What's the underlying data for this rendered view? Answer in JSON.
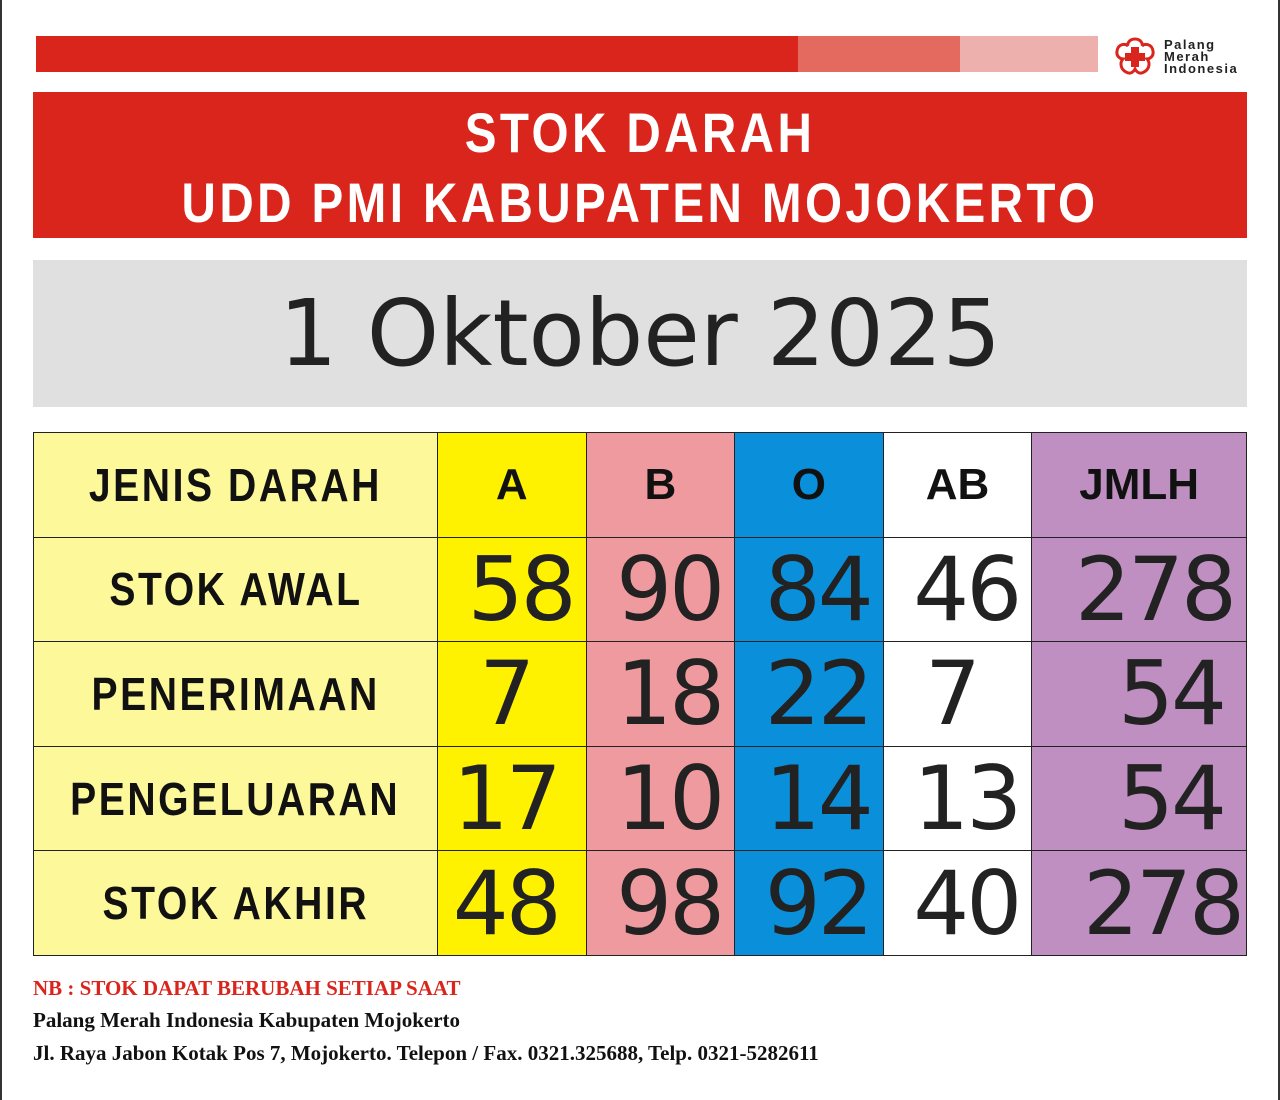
{
  "colors": {
    "red": "#da251d",
    "A": "#fff200",
    "B": "#ef9a9e",
    "O": "#0a8fdb",
    "AB": "#ffffff",
    "JMLH": "#bf8fc2",
    "label": "#fdf89a"
  },
  "logo": {
    "icon": "red-cross-flower-icon",
    "text": [
      "Palang",
      "Merah",
      "Indonesia"
    ]
  },
  "title": {
    "line1": "STOK DARAH",
    "line2": "UDD PMI KABUPATEN MOJOKERTO"
  },
  "date": "1 Oktober 2025",
  "table": {
    "headers": [
      "JENIS DARAH",
      "A",
      "B",
      "O",
      "AB",
      "JMLH"
    ],
    "rows": [
      {
        "label": "STOK AWAL",
        "values": [
          "58",
          "90",
          "84",
          "46",
          "278"
        ]
      },
      {
        "label": "PENERIMAAN",
        "values": [
          "7",
          "18",
          "22",
          "7",
          "54"
        ]
      },
      {
        "label": "PENGELUARAN",
        "values": [
          "17",
          "10",
          "14",
          "13",
          "54"
        ]
      },
      {
        "label": "STOK AKHIR",
        "values": [
          "48",
          "98",
          "92",
          "40",
          "278"
        ]
      }
    ]
  },
  "footer": {
    "note": "NB : STOK DAPAT BERUBAH SETIAP SAAT",
    "org": "Palang Merah Indonesia Kabupaten Mojokerto",
    "address": "Jl. Raya Jabon Kotak Pos 7, Mojokerto. Telepon / Fax. 0321.325688, Telp. 0321-5282611"
  }
}
